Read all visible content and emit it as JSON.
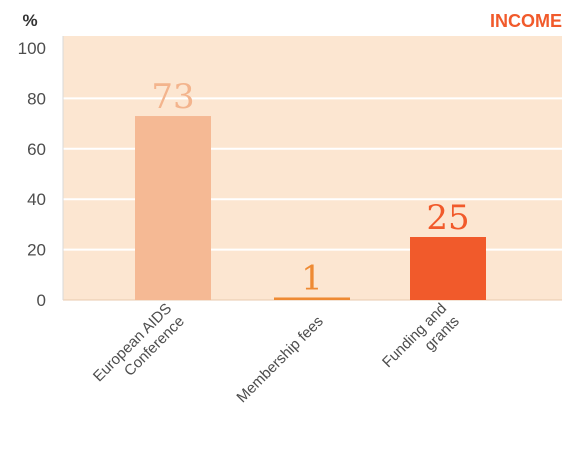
{
  "chart_data": {
    "type": "bar",
    "title": "INCOME",
    "ylabel": "%",
    "categories": [
      [
        "European AIDS",
        "Conference"
      ],
      [
        "Membership fees"
      ],
      [
        "Funding and",
        "grants"
      ]
    ],
    "values": [
      73,
      1,
      25
    ],
    "data_labels": [
      "73",
      "1",
      "25"
    ],
    "ylim": [
      0,
      100
    ],
    "yticks": [
      0,
      20,
      40,
      60,
      80,
      100
    ],
    "grid": true,
    "colors": {
      "plot_background": "#fce6d1",
      "grid": "#ffffff",
      "title": "#f15a2b",
      "bars": [
        "#f5b994",
        "#ee8a33",
        "#f15a2b"
      ],
      "labels": [
        "#f3b48d",
        "#ee8a33",
        "#f15a2b"
      ]
    }
  }
}
